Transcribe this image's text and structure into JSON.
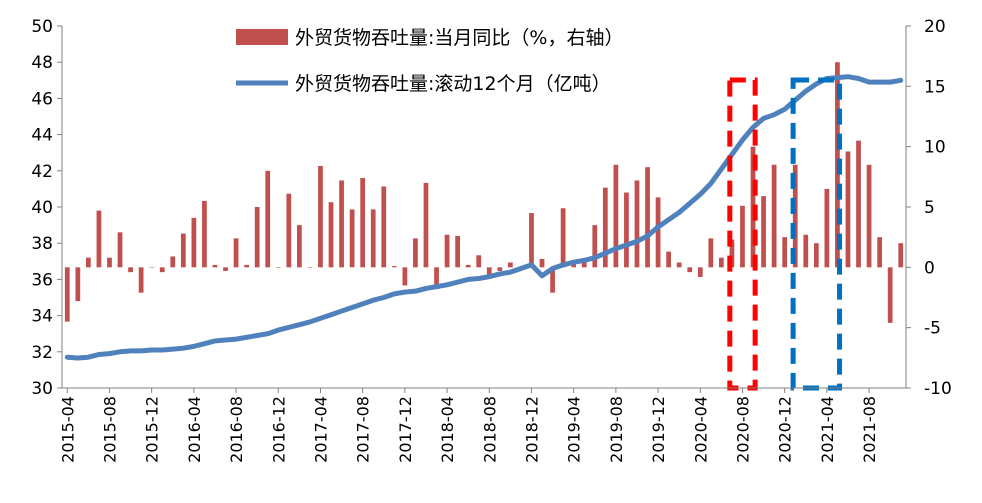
{
  "chart_data": {
    "type": "bar+line",
    "x_tick_labels": [
      "2015-04",
      "2015-08",
      "2015-12",
      "2016-04",
      "2016-08",
      "2016-12",
      "2017-04",
      "2017-08",
      "2017-12",
      "2018-04",
      "2018-08",
      "2018-12",
      "2019-04",
      "2019-08",
      "2019-12",
      "2020-04",
      "2020-08",
      "2020-12",
      "2021-04",
      "2021-08"
    ],
    "y_left": {
      "lim": [
        30,
        50
      ],
      "ticks": [
        "30",
        "32",
        "34",
        "36",
        "38",
        "40",
        "42",
        "44",
        "46",
        "48",
        "50"
      ]
    },
    "y_right": {
      "lim": [
        -10,
        20
      ],
      "ticks": [
        "-10",
        "-5",
        "0",
        "5",
        "10",
        "15",
        "20"
      ]
    },
    "series": [
      {
        "name": "外贸货物吞吐量:当月同比（%，右轴）",
        "type": "bar",
        "axis": "right",
        "color": "#C0504D",
        "values": [
          -4.5,
          -2.8,
          0.8,
          4.7,
          0.8,
          2.9,
          -0.4,
          -2.1,
          0.0,
          -0.4,
          0.9,
          2.8,
          4.1,
          5.5,
          0.2,
          -0.3,
          2.4,
          0.2,
          5.0,
          8.0,
          0.0,
          6.1,
          3.5,
          0.0,
          8.4,
          5.4,
          7.2,
          4.8,
          7.4,
          4.8,
          6.7,
          0.1,
          -1.5,
          2.4,
          7.0,
          -1.8,
          2.7,
          2.6,
          0.2,
          1.0,
          -0.9,
          -0.3,
          0.4,
          0.0,
          4.5,
          0.7,
          -2.1,
          4.9,
          0.5,
          0.6,
          3.5,
          6.6,
          8.5,
          6.2,
          7.2,
          8.3,
          5.8,
          1.3,
          0.4,
          -0.4,
          -0.8,
          2.4,
          0.8,
          2.3,
          5.1,
          10.0,
          5.9,
          8.5,
          2.5,
          8.5,
          2.7,
          2.0,
          6.5,
          17.0,
          9.6,
          10.5,
          8.5,
          2.5,
          -4.6,
          2.0
        ]
      },
      {
        "name": "外贸货物吞吐量:滚动12个月（亿吨）",
        "type": "line",
        "axis": "left",
        "color": "#4F81BD",
        "values": [
          31.7,
          31.66,
          31.7,
          31.85,
          31.9,
          32.0,
          32.05,
          32.05,
          32.1,
          32.1,
          32.15,
          32.2,
          32.3,
          32.45,
          32.6,
          32.65,
          32.7,
          32.8,
          32.9,
          33.0,
          33.2,
          33.35,
          33.5,
          33.65,
          33.85,
          34.05,
          34.25,
          34.45,
          34.65,
          34.85,
          35.0,
          35.2,
          35.3,
          35.35,
          35.5,
          35.6,
          35.7,
          35.85,
          36.0,
          36.05,
          36.15,
          36.3,
          36.4,
          36.6,
          36.8,
          36.2,
          36.6,
          36.8,
          36.95,
          37.05,
          37.2,
          37.45,
          37.7,
          37.9,
          38.1,
          38.4,
          38.9,
          39.3,
          39.7,
          40.2,
          40.7,
          41.3,
          42.1,
          42.9,
          43.7,
          44.4,
          44.9,
          45.1,
          45.4,
          45.9,
          46.4,
          46.8,
          47.1,
          47.15,
          47.2,
          47.1,
          46.9,
          46.9,
          46.9,
          47.0
        ]
      }
    ],
    "highlight_boxes": [
      {
        "color": "#FF0000",
        "style": "dashed",
        "from_month": "2020-07",
        "to_month": "2020-09"
      },
      {
        "color": "#0070C0",
        "style": "dashed",
        "from_month": "2021-01",
        "to_month": "2021-05"
      }
    ],
    "legend_position": "top-center"
  }
}
